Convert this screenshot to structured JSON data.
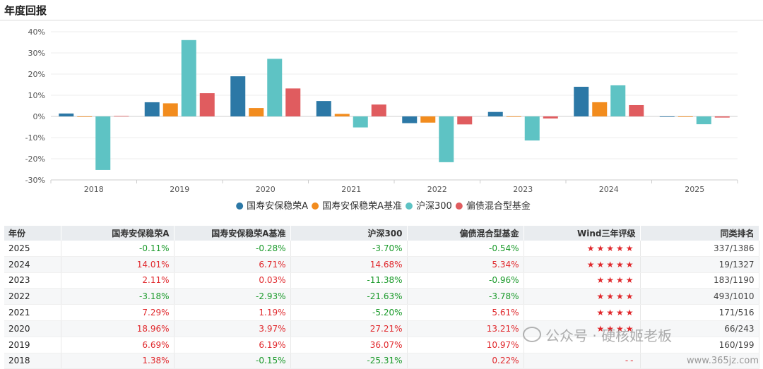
{
  "section_title": "年度回报",
  "colors": {
    "series": [
      "#2c78a6",
      "#f28c1e",
      "#5ec3c4",
      "#e05c5f"
    ],
    "positive": "#e0282c",
    "negative": "#1a9a2a",
    "star": "#e0282c"
  },
  "chart_data": {
    "type": "bar",
    "categories": [
      "2018",
      "2019",
      "2020",
      "2021",
      "2022",
      "2023",
      "2024",
      "2025"
    ],
    "series": [
      {
        "name": "国寿安保稳荣A",
        "values": [
          1.38,
          6.69,
          18.96,
          7.29,
          -3.18,
          2.11,
          14.01,
          -0.11
        ]
      },
      {
        "name": "国寿安保稳荣A基准",
        "values": [
          -0.15,
          6.19,
          3.97,
          1.19,
          -2.93,
          0.03,
          6.71,
          -0.28
        ]
      },
      {
        "name": "沪深300",
        "values": [
          -25.31,
          36.07,
          27.21,
          -5.2,
          -21.63,
          -11.38,
          14.68,
          -3.7
        ]
      },
      {
        "name": "偏债混合型基金",
        "values": [
          0.22,
          10.97,
          13.21,
          5.61,
          -3.78,
          -0.96,
          5.34,
          -0.54
        ]
      }
    ],
    "ylim": [
      -30,
      40
    ],
    "yticks": [
      "-30%",
      "-20%",
      "-10%",
      "0%",
      "10%",
      "20%",
      "30%",
      "40%"
    ],
    "grid": true,
    "legend_position": "bottom"
  },
  "table": {
    "headers": [
      "年份",
      "国寿安保稳荣A",
      "国寿安保稳荣A基准",
      "沪深300",
      "偏债混合型基金",
      "Wind三年评级",
      "同类排名"
    ],
    "rows": [
      {
        "year": "2025",
        "fund": "-0.11%",
        "bench": "-0.28%",
        "hs300": "-3.70%",
        "peer": "-0.54%",
        "rating": "★★★★★",
        "rank": "337/1386"
      },
      {
        "year": "2024",
        "fund": "14.01%",
        "bench": "6.71%",
        "hs300": "14.68%",
        "peer": "5.34%",
        "rating": "★★★★★",
        "rank": "19/1327"
      },
      {
        "year": "2023",
        "fund": "2.11%",
        "bench": "0.03%",
        "hs300": "-11.38%",
        "peer": "-0.96%",
        "rating": "★★★★",
        "rank": "183/1190"
      },
      {
        "year": "2022",
        "fund": "-3.18%",
        "bench": "-2.93%",
        "hs300": "-21.63%",
        "peer": "-3.78%",
        "rating": "★★★★",
        "rank": "493/1010"
      },
      {
        "year": "2021",
        "fund": "7.29%",
        "bench": "1.19%",
        "hs300": "-5.20%",
        "peer": "5.61%",
        "rating": "★★★★",
        "rank": "171/516"
      },
      {
        "year": "2020",
        "fund": "18.96%",
        "bench": "3.97%",
        "hs300": "27.21%",
        "peer": "13.21%",
        "rating": "★★★★",
        "rank": "66/243"
      },
      {
        "year": "2019",
        "fund": "6.69%",
        "bench": "6.19%",
        "hs300": "36.07%",
        "peer": "10.97%",
        "rating": "",
        "rank": "160/199"
      },
      {
        "year": "2018",
        "fund": "1.38%",
        "bench": "-0.15%",
        "hs300": "-25.31%",
        "peer": "0.22%",
        "rating": "--",
        "rank": ""
      }
    ]
  },
  "watermark": {
    "text": "公众号 · 硬核姬老板",
    "url": "www.365jz.com"
  }
}
